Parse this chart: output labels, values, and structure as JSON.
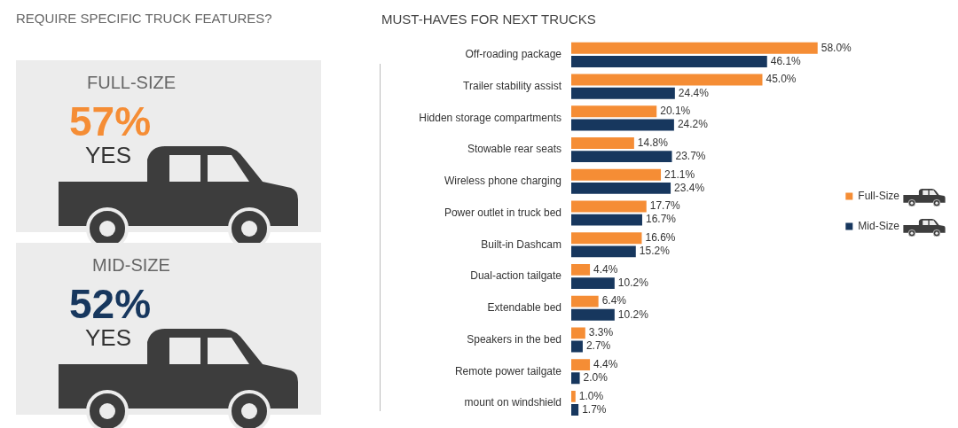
{
  "chart_data": [
    {
      "type": "other",
      "title": "REQUIRE SPECIFIC TRUCK FEATURES?",
      "annotations": [
        "FULL-SIZE",
        "57%",
        "YES",
        "MID-SIZE",
        "52%",
        "YES"
      ]
    },
    {
      "type": "bar",
      "orientation": "horizontal",
      "title": "MUST-HAVES FOR NEXT TRUCKS",
      "legend": "right",
      "grid": false,
      "tick_labels": "y",
      "categories": [
        "Off-roading package",
        "Trailer stability assist",
        "Hidden storage compartments",
        "Stowable rear seats",
        "Wireless phone charging",
        "Power outlet in truck bed",
        "Built-in Dashcam",
        "Dual-action tailgate",
        "Extendable bed",
        "Speakers in the bed",
        "Remote power tailgate",
        "mount on windshield"
      ],
      "series": [
        {
          "name": "Full-Size",
          "color": "#f58d35",
          "values": [
            58.0,
            45.0,
            20.1,
            14.8,
            21.1,
            17.7,
            16.6,
            4.4,
            6.4,
            3.3,
            4.4,
            1.0
          ],
          "value_labels": [
            "58.0%",
            "45.0%",
            "20.1%",
            "14.8%",
            "21.1%",
            "17.7%",
            "16.6%",
            "4.4%",
            "6.4%",
            "3.3%",
            "4.4%",
            "1.0%"
          ]
        },
        {
          "name": "Mid-Size",
          "color": "#17375e",
          "values": [
            46.1,
            24.4,
            24.2,
            23.7,
            23.4,
            16.7,
            15.2,
            10.2,
            10.2,
            2.7,
            2.0,
            1.7
          ],
          "value_labels": [
            "46.1%",
            "24.4%",
            "24.2%",
            "23.7%",
            "23.4%",
            "16.7%",
            "15.2%",
            "10.2%",
            "10.2%",
            "2.7%",
            "2.0%",
            "1.7%"
          ]
        }
      ]
    }
  ]
}
